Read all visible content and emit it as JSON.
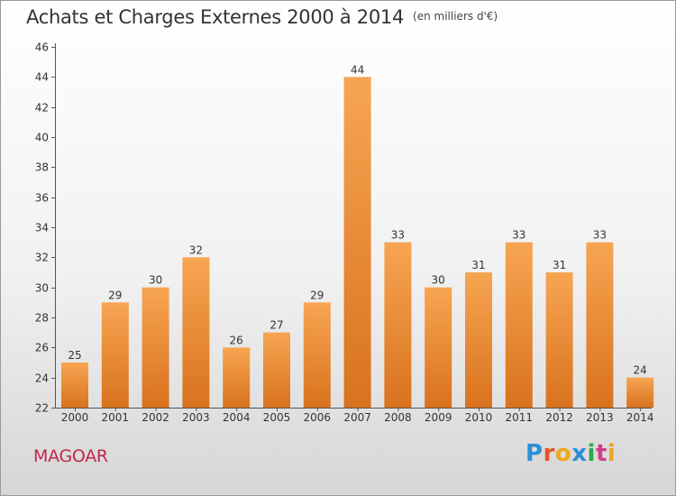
{
  "header": {
    "title": "Achats et Charges Externes 2000 à 2014",
    "unit": "(en milliers d'€)"
  },
  "footer": {
    "place": "MAGOAR",
    "logo": [
      "P",
      "r",
      "o",
      "x",
      "i",
      "t",
      "i"
    ]
  },
  "colors": {
    "bar_top": "#f7a552",
    "bar_bottom": "#d9721e",
    "place": "#c4264f",
    "axis": "#555555"
  },
  "chart_data": {
    "type": "bar",
    "title": "Achats et Charges Externes 2000 à 2014",
    "subtitle": "(en milliers d'€)",
    "categories": [
      "2000",
      "2001",
      "2002",
      "2003",
      "2004",
      "2005",
      "2006",
      "2007",
      "2008",
      "2009",
      "2010",
      "2011",
      "2012",
      "2013",
      "2014"
    ],
    "values": [
      25,
      29,
      30,
      32,
      26,
      27,
      29,
      44,
      33,
      30,
      31,
      33,
      31,
      33,
      24
    ],
    "ylim": [
      22,
      46
    ],
    "yticks": [
      22,
      24,
      26,
      28,
      30,
      32,
      34,
      36,
      38,
      40,
      42,
      44,
      46
    ],
    "grid": false,
    "legend": "none"
  }
}
